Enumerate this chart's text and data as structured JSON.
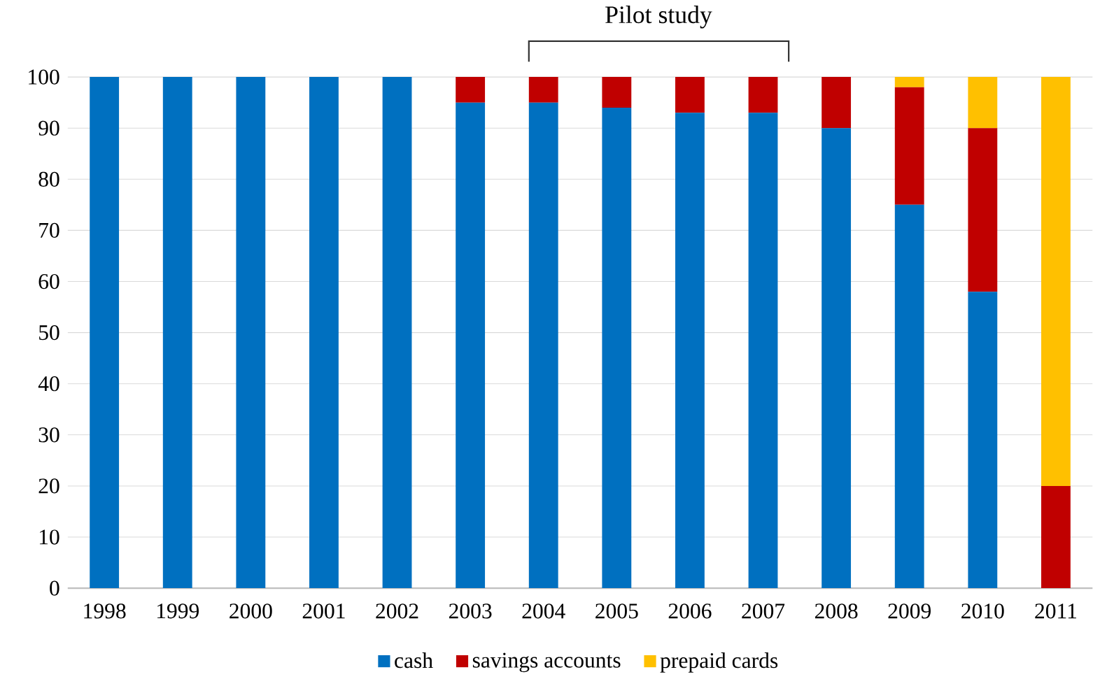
{
  "chart_data": {
    "type": "bar",
    "stacked": true,
    "annotations": [
      "Pilot study"
    ],
    "categories": [
      "1998",
      "1999",
      "2000",
      "2001",
      "2002",
      "2003",
      "2004",
      "2005",
      "2006",
      "2007",
      "2008",
      "2009",
      "2010",
      "2011"
    ],
    "series": [
      {
        "name": "cash",
        "color": "#0070c0",
        "values": [
          100,
          100,
          100,
          100,
          100,
          95,
          95,
          94,
          93,
          93,
          90,
          75,
          58,
          0
        ]
      },
      {
        "name": "savings accounts",
        "color": "#c00000",
        "values": [
          0,
          0,
          0,
          0,
          0,
          5,
          5,
          6,
          7,
          7,
          10,
          23,
          32,
          20
        ]
      },
      {
        "name": "prepaid cards",
        "color": "#ffc000",
        "values": [
          0,
          0,
          0,
          0,
          0,
          0,
          0,
          0,
          0,
          0,
          0,
          2,
          10,
          80
        ]
      }
    ],
    "ylim": [
      0,
      100
    ],
    "yticks": [
      0,
      10,
      20,
      30,
      40,
      50,
      60,
      70,
      80,
      90,
      100
    ],
    "grid": "y",
    "legend": "bottom"
  }
}
